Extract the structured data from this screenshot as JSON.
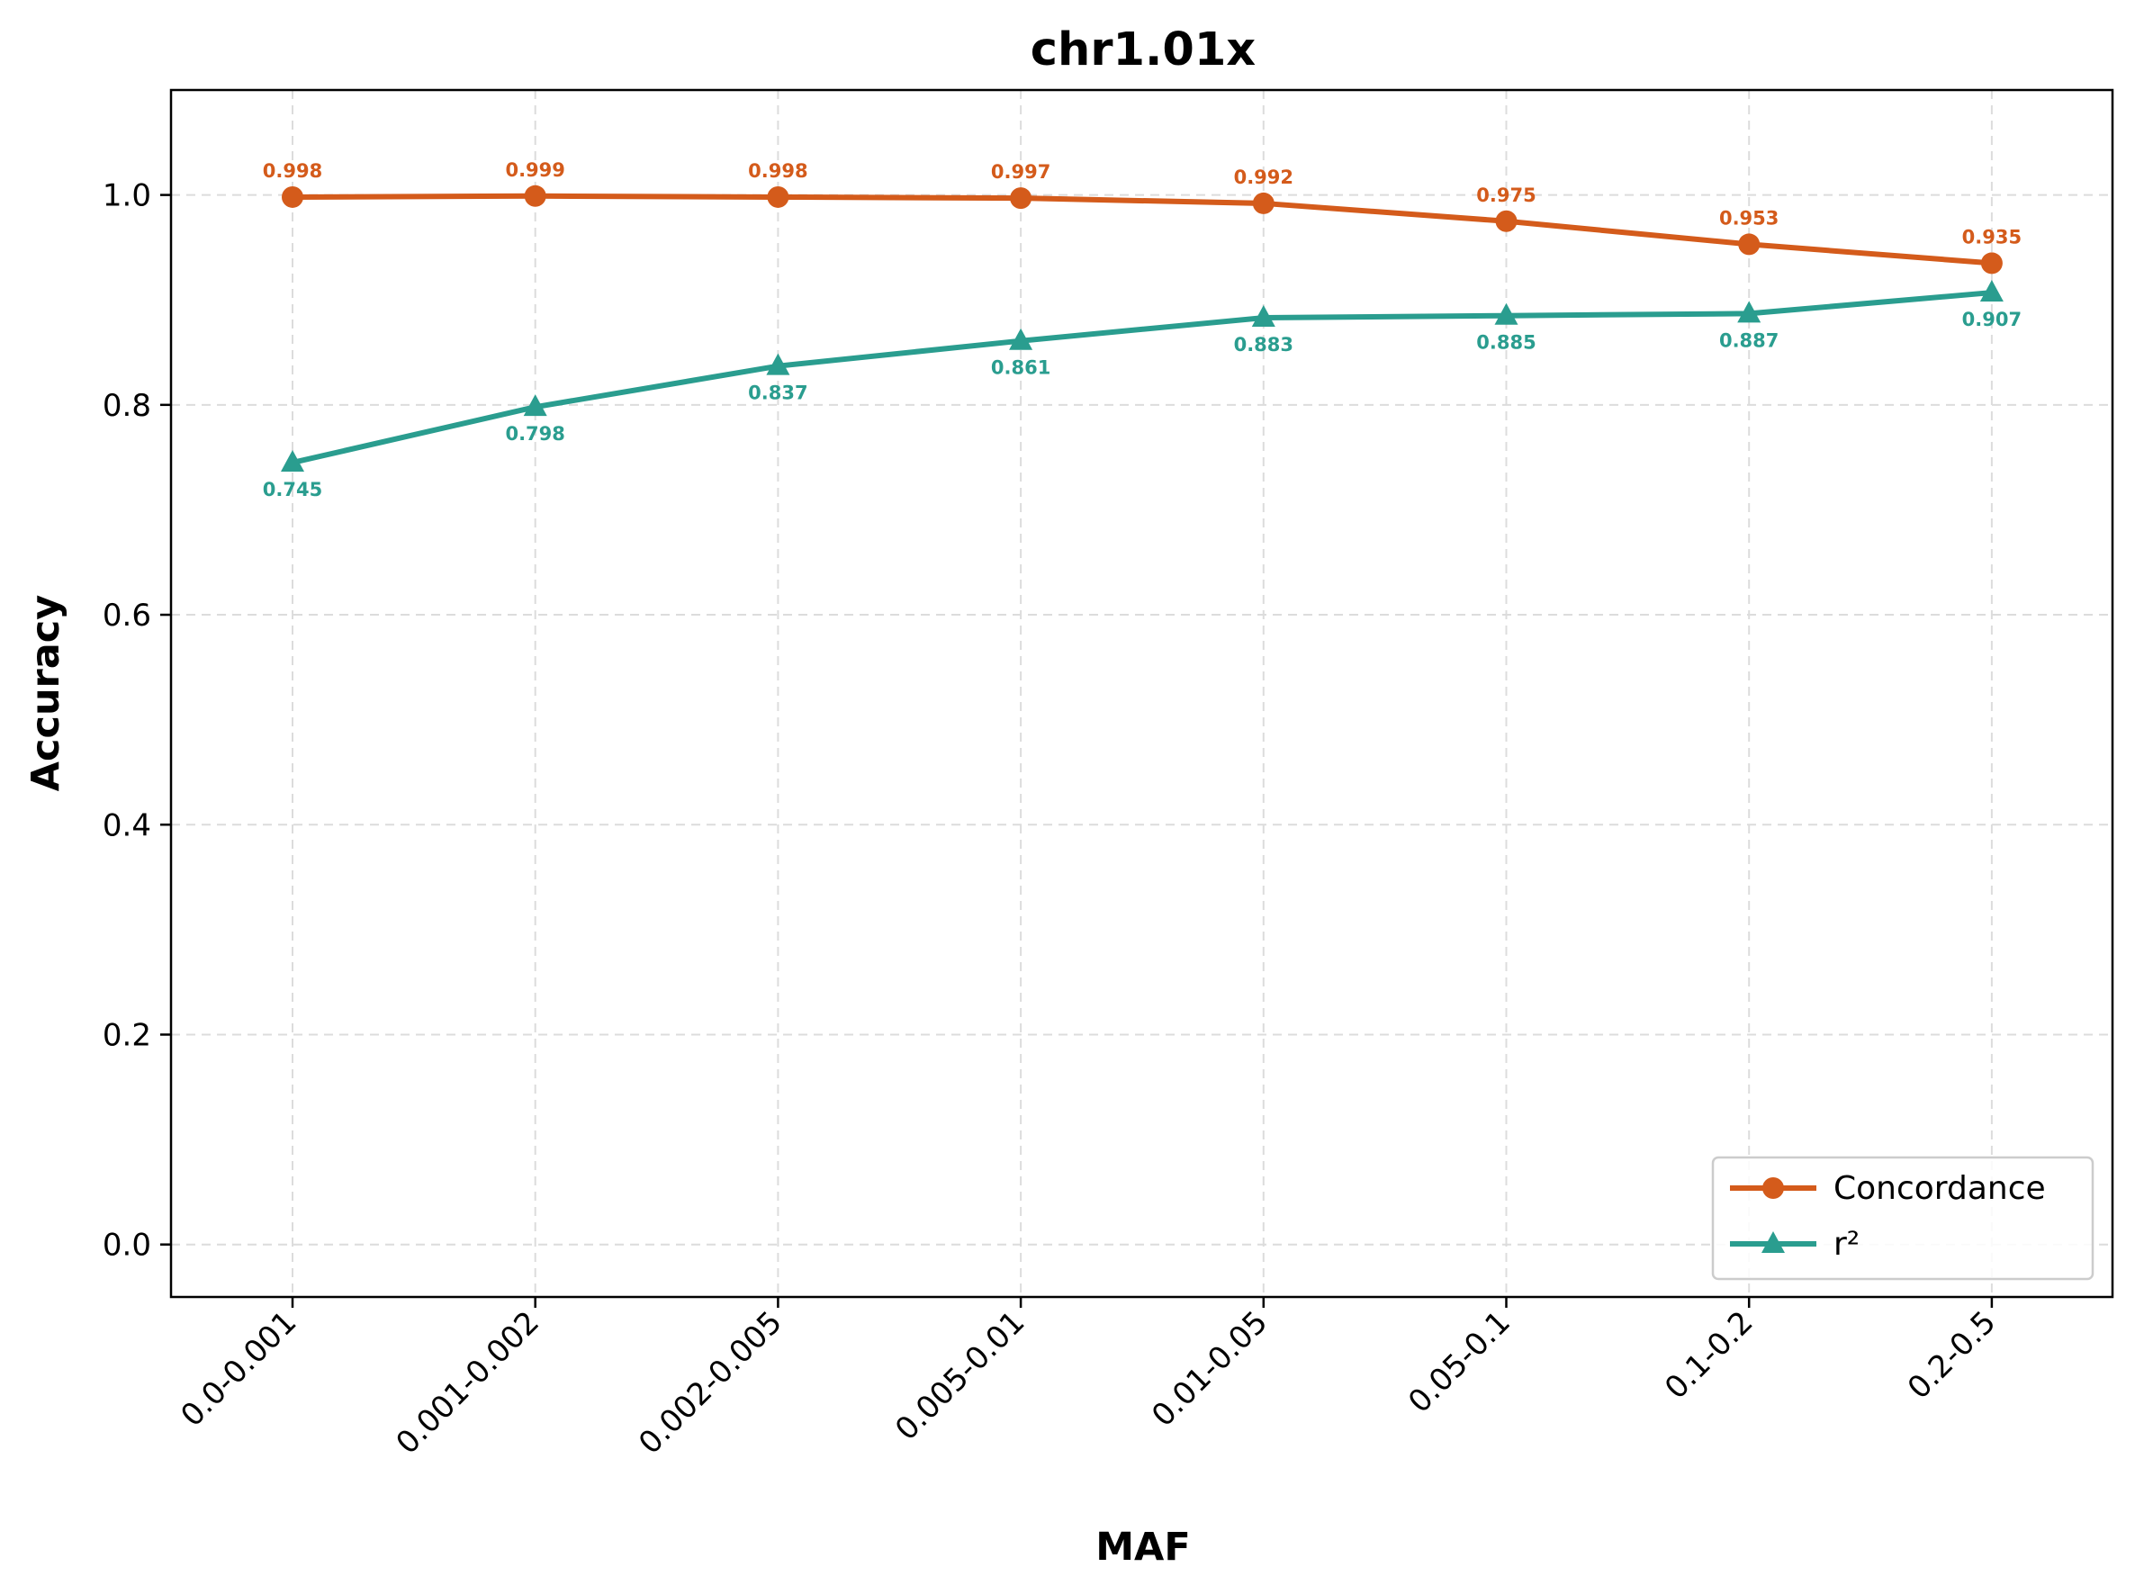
{
  "chart_data": {
    "type": "line",
    "title": "chr1.01x",
    "xlabel": "MAF",
    "ylabel": "Accuracy",
    "categories": [
      "0.0-0.001",
      "0.001-0.002",
      "0.002-0.005",
      "0.005-0.01",
      "0.01-0.05",
      "0.05-0.1",
      "0.1-0.2",
      "0.2-0.5"
    ],
    "ylim": [
      -0.05,
      1.1
    ],
    "yticks": [
      "0.0",
      "0.2",
      "0.4",
      "0.6",
      "0.8",
      "1.0"
    ],
    "grid": true,
    "legend_position": "lower-right",
    "series": [
      {
        "name": "Concordance",
        "color": "#d45b1b",
        "marker": "circle",
        "values": [
          0.998,
          0.999,
          0.998,
          0.997,
          0.992,
          0.975,
          0.953,
          0.935
        ],
        "labels": [
          "0.998",
          "0.999",
          "0.998",
          "0.997",
          "0.992",
          "0.975",
          "0.953",
          "0.935"
        ],
        "label_position": "above"
      },
      {
        "name": "r²",
        "color": "#2a9d8f",
        "marker": "triangle",
        "values": [
          0.745,
          0.798,
          0.837,
          0.861,
          0.883,
          0.885,
          0.887,
          0.907
        ],
        "labels": [
          "0.745",
          "0.798",
          "0.837",
          "0.861",
          "0.883",
          "0.885",
          "0.887",
          "0.907"
        ],
        "label_position": "below"
      }
    ]
  }
}
